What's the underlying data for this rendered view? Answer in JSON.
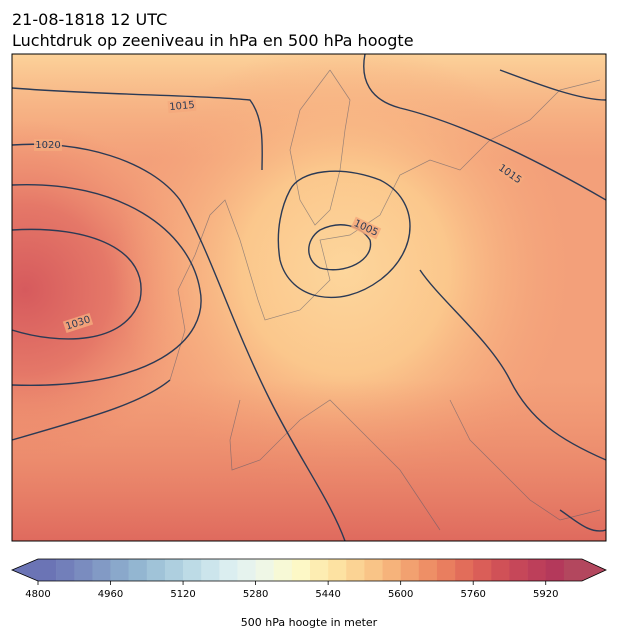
{
  "header": {
    "date": "21-08-1818 12 UTC",
    "title": "Luchtdruk op zeeniveau in hPa en 500 hPa hoogte"
  },
  "map": {
    "contour_labels": [
      1015,
      1020,
      1030,
      1005,
      1015
    ]
  },
  "colorbar": {
    "label": "500 hPa hoogte in meter",
    "range": [
      4800,
      6000
    ],
    "ticks": [
      4800,
      4960,
      5120,
      5280,
      5440,
      5600,
      5760,
      5920
    ],
    "colors": [
      "#6b74b5",
      "#727fba",
      "#7a8cbf",
      "#829ac5",
      "#8aa8cb",
      "#93b6d1",
      "#a0c3d8",
      "#aecfdf",
      "#bddbe6",
      "#cce5ec",
      "#dbeef0",
      "#e6f3ee",
      "#eff7e6",
      "#f7f9d6",
      "#fdf8c6",
      "#fdedb2",
      "#fde2a2",
      "#fbd394",
      "#f9c487",
      "#f6b37b",
      "#f2a170",
      "#ee8f66",
      "#e97e5f",
      "#e26d5a",
      "#da5e58",
      "#d05157",
      "#c64759",
      "#bd3f5a",
      "#b4395b",
      "#b3475e"
    ]
  }
}
